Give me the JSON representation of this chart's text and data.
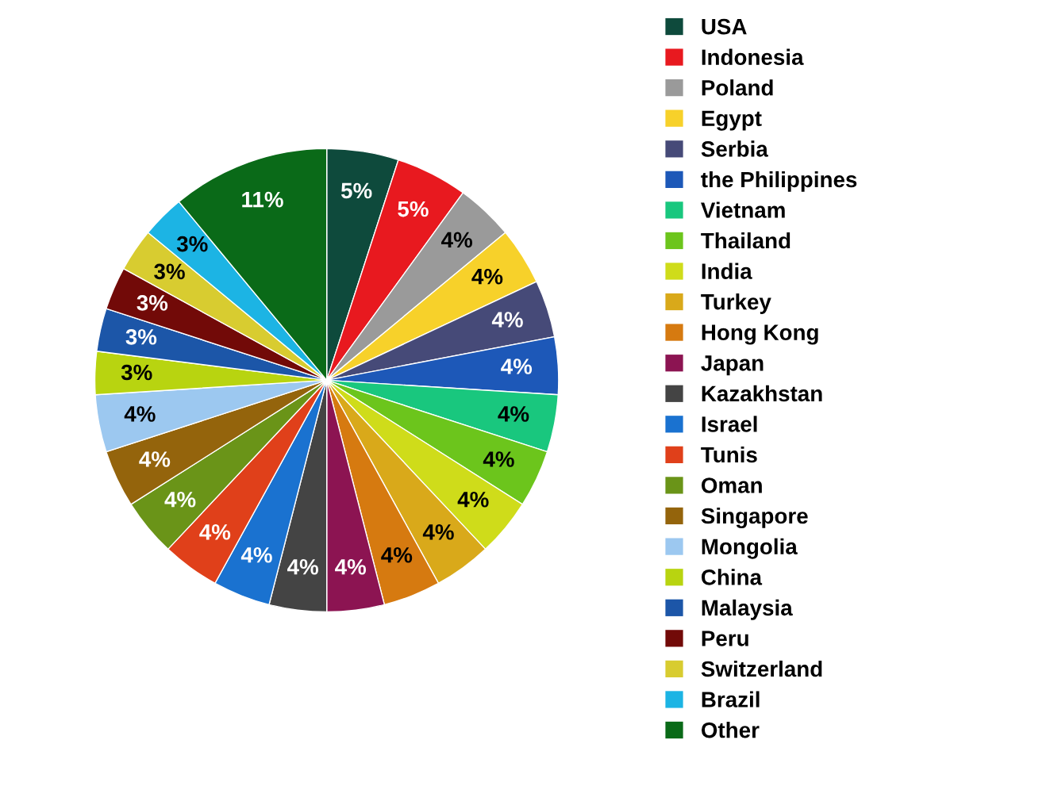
{
  "chart_data": {
    "type": "pie",
    "categories": [
      "USA",
      "Indonesia",
      "Poland",
      "Egypt",
      "Serbia",
      "the Philippines",
      "Vietnam",
      "Thailand",
      "India",
      "Turkey",
      "Hong Kong",
      "Japan",
      "Kazakhstan",
      "Israel",
      "Tunis",
      "Oman",
      "Singapore",
      "Mongolia",
      "China",
      "Malaysia",
      "Peru",
      "Switzerland",
      "Brazil",
      "Other"
    ],
    "values": [
      5,
      5,
      4,
      4,
      4,
      4,
      4,
      4,
      4,
      4,
      4,
      4,
      4,
      4,
      4,
      4,
      4,
      4,
      3,
      3,
      3,
      3,
      3,
      11
    ],
    "value_labels": [
      "5%",
      "5%",
      "4%",
      "4%",
      "4%",
      "4%",
      "4%",
      "4%",
      "4%",
      "4%",
      "4%",
      "4%",
      "4%",
      "4%",
      "4%",
      "4%",
      "4%",
      "4%",
      "3%",
      "3%",
      "3%",
      "3%",
      "3%",
      "11%"
    ],
    "colors": [
      "#0e4a3c",
      "#e8191f",
      "#9a9a9a",
      "#f7d12a",
      "#464a78",
      "#1d58b8",
      "#19c77e",
      "#6cc51c",
      "#cfdc1a",
      "#d9a91a",
      "#d67a10",
      "#8c1452",
      "#444444",
      "#1a72d0",
      "#e0401a",
      "#6a9418",
      "#94640c",
      "#9cc8f0",
      "#b8d410",
      "#1c56a8",
      "#720a08",
      "#d8cc30",
      "#1cb4e4",
      "#0a6a18"
    ],
    "legend": "right"
  }
}
